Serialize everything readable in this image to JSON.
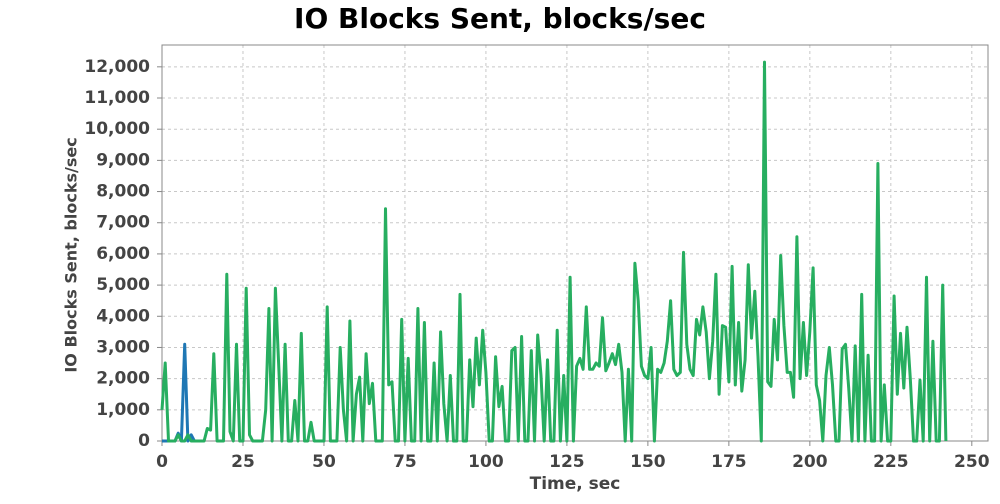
{
  "chart_data": {
    "type": "line",
    "title": "IO Blocks Sent, blocks/sec",
    "xlabel": "Time, sec",
    "ylabel": "IO Blocks Sent, blocks/sec",
    "xlim": [
      0,
      255
    ],
    "ylim": [
      0,
      12700
    ],
    "xticks": [
      0,
      25,
      50,
      75,
      100,
      125,
      150,
      175,
      200,
      225,
      250
    ],
    "yticks": [
      0,
      {
        "value": 1000,
        "label": "1,000"
      },
      {
        "value": 2000,
        "label": "2,000"
      },
      {
        "value": 3000,
        "label": "3,000"
      },
      {
        "value": 4000,
        "label": "4,000"
      },
      {
        "value": 5000,
        "label": "5,000"
      },
      {
        "value": 6000,
        "label": "6,000"
      },
      {
        "value": 7000,
        "label": "7,000"
      },
      {
        "value": 8000,
        "label": "8,000"
      },
      {
        "value": 9000,
        "label": "9,000"
      },
      {
        "value": 10000,
        "label": "10,000"
      },
      {
        "value": 11000,
        "label": "11,000"
      },
      {
        "value": 12000,
        "label": "12,000"
      }
    ],
    "grid": true,
    "x": [
      0,
      1,
      2,
      3,
      4,
      5,
      6,
      7,
      8,
      9,
      10,
      11,
      12,
      13,
      14,
      15,
      16,
      17,
      18,
      19,
      20,
      21,
      22,
      23,
      24,
      25,
      26,
      27,
      28,
      29,
      30,
      31,
      32,
      33,
      34,
      35,
      36,
      37,
      38,
      39,
      40,
      41,
      42,
      43,
      44,
      45,
      46,
      47,
      48,
      49,
      50,
      51,
      52,
      53,
      54,
      55,
      56,
      57,
      58,
      59,
      60,
      61,
      62,
      63,
      64,
      65,
      66,
      67,
      68,
      69,
      70,
      71,
      72,
      73,
      74,
      75,
      76,
      77,
      78,
      79,
      80,
      81,
      82,
      83,
      84,
      85,
      86,
      87,
      88,
      89,
      90,
      91,
      92,
      93,
      94,
      95,
      96,
      97,
      98,
      99,
      100,
      101,
      102,
      103,
      104,
      105,
      106,
      107,
      108,
      109,
      110,
      111,
      112,
      113,
      114,
      115,
      116,
      117,
      118,
      119,
      120,
      121,
      122,
      123,
      124,
      125,
      126,
      127,
      128,
      129,
      130,
      131,
      132,
      133,
      134,
      135,
      136,
      137,
      138,
      139,
      140,
      141,
      142,
      143,
      144,
      145,
      146,
      147,
      148,
      149,
      150,
      151,
      152,
      153,
      154,
      155,
      156,
      157,
      158,
      159,
      160,
      161,
      162,
      163,
      164,
      165,
      166,
      167,
      168,
      169,
      170,
      171,
      172,
      173,
      174,
      175,
      176,
      177,
      178,
      179,
      180,
      181,
      182,
      183,
      184,
      185,
      186,
      187,
      188,
      189,
      190,
      191,
      192,
      193,
      194,
      195,
      196,
      197,
      198,
      199,
      200,
      201,
      202,
      203,
      204,
      205,
      206,
      207,
      208,
      209,
      210,
      211,
      212,
      213,
      214,
      215,
      216,
      217,
      218,
      219,
      220,
      221,
      222,
      223,
      224,
      225,
      226,
      227,
      228,
      229,
      230,
      231,
      232,
      233,
      234,
      235,
      236,
      237,
      238,
      239,
      240,
      241,
      242
    ],
    "series": [
      {
        "color": "#1f77b4",
        "x": [
          0,
          1,
          2,
          3,
          4,
          5,
          6,
          7,
          8,
          9,
          10
        ],
        "values": [
          0,
          0,
          0,
          0,
          0,
          250,
          0,
          3100,
          0,
          200,
          0
        ]
      },
      {
        "color": "#27ae60",
        "values": [
          1000,
          2500,
          0,
          0,
          0,
          200,
          0,
          0,
          200,
          0,
          0,
          0,
          0,
          0,
          400,
          350,
          2800,
          0,
          0,
          0,
          5350,
          300,
          0,
          3100,
          0,
          0,
          4900,
          200,
          0,
          0,
          0,
          0,
          1000,
          4250,
          0,
          4900,
          2500,
          0,
          3100,
          0,
          0,
          1300,
          0,
          3450,
          0,
          0,
          600,
          0,
          0,
          0,
          0,
          4300,
          0,
          0,
          0,
          3000,
          1000,
          0,
          3850,
          0,
          1500,
          2050,
          0,
          2800,
          1200,
          1850,
          0,
          0,
          0,
          7450,
          1800,
          1900,
          0,
          0,
          3900,
          0,
          2650,
          0,
          0,
          4250,
          0,
          3800,
          0,
          0,
          2500,
          0,
          3500,
          1200,
          0,
          2100,
          0,
          0,
          4700,
          0,
          0,
          2600,
          1100,
          3300,
          1800,
          3550,
          2200,
          0,
          0,
          2700,
          1100,
          1750,
          0,
          0,
          2900,
          3000,
          0,
          3350,
          0,
          0,
          2900,
          0,
          3400,
          2100,
          0,
          2600,
          0,
          0,
          3550,
          0,
          2100,
          0,
          5250,
          0,
          2400,
          2650,
          2300,
          4300,
          2300,
          2300,
          2500,
          2400,
          3950,
          2250,
          2500,
          2800,
          2450,
          3100,
          2200,
          0,
          2300,
          0,
          5700,
          4500,
          2400,
          2100,
          2000,
          3000,
          0,
          2300,
          2200,
          2500,
          3200,
          4500,
          2300,
          2100,
          2200,
          6050,
          3100,
          2300,
          2100,
          3900,
          3400,
          4300,
          3500,
          2000,
          3200,
          5350,
          1500,
          3700,
          3650,
          1900,
          5600,
          1800,
          3800,
          1600,
          2600,
          5650,
          3300,
          4800,
          2700,
          0,
          12150,
          1900,
          1750,
          3900,
          2600,
          5950,
          3700,
          2200,
          2200,
          1400,
          6550,
          2000,
          3800,
          2100,
          3500,
          5550,
          1800,
          1300,
          0,
          2100,
          3000,
          1800,
          0,
          0,
          2950,
          3100,
          1700,
          0,
          3050,
          0,
          4700,
          0,
          2750,
          0,
          0,
          8900,
          0,
          1800,
          0,
          0,
          4650,
          1500,
          3450,
          1700,
          3650,
          2000,
          0,
          0,
          1950,
          0,
          5250,
          0,
          3200,
          0,
          0,
          5000,
          0
        ]
      }
    ]
  }
}
